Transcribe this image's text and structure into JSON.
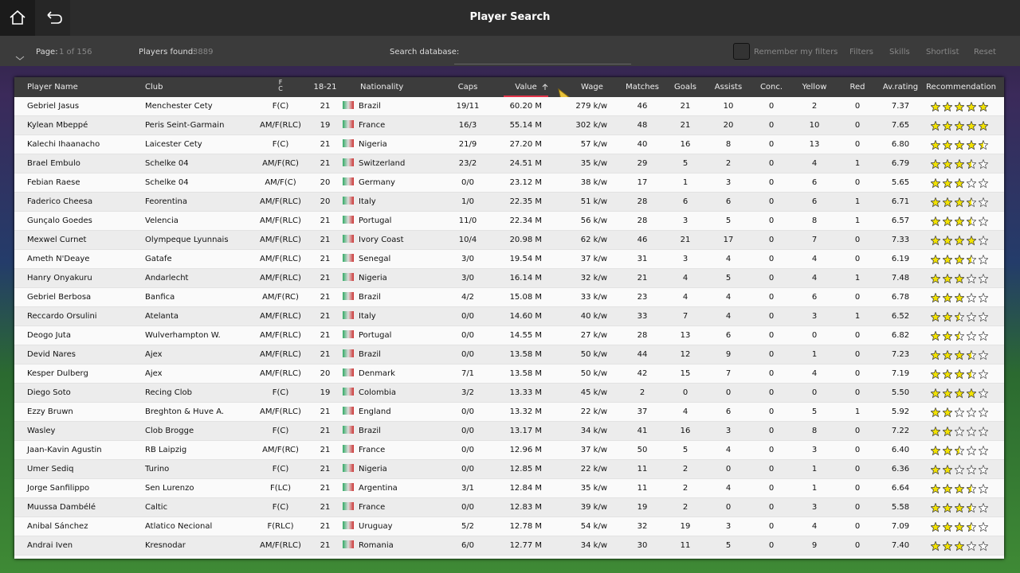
{
  "header": {
    "title": "Player Search",
    "page_label": "Page:",
    "page_value": "1 of 156",
    "found_label": "Players found:",
    "found_value": "3889",
    "search_label": "Search database:",
    "remember": "Remember my filters",
    "buttons": [
      "Filters",
      "Skills",
      "Shortlist",
      "Reset"
    ]
  },
  "table": {
    "columns": [
      "Player Name",
      "Club",
      "F\nC",
      "18-21",
      "Nationality",
      "Caps",
      "Value",
      "Wage",
      "Matches",
      "Goals",
      "Assists",
      "Conc.",
      "Yellow",
      "Red",
      "Av.rating",
      "Recommendation"
    ],
    "rows": [
      [
        "Gebriel Jasus",
        "Menchester Cety",
        "F(C)",
        "21",
        "Brazil",
        "19/11",
        "60.20 M",
        "279 k/w",
        "46",
        "21",
        "10",
        "0",
        "2",
        "0",
        "7.37"
      ],
      [
        "Kylean Mbeppé",
        "Peris Seint-Garmain",
        "AM/F(RLC)",
        "19",
        "France",
        "16/3",
        "55.14 M",
        "302 k/w",
        "48",
        "21",
        "20",
        "0",
        "10",
        "0",
        "7.65"
      ],
      [
        "Kalechi Ihaanacho",
        "Laicester Cety",
        "F(C)",
        "21",
        "Nigeria",
        "21/9",
        "27.20 M",
        "57 k/w",
        "40",
        "16",
        "8",
        "0",
        "13",
        "0",
        "6.80"
      ],
      [
        "Brael Embulo",
        "Schelke 04",
        "AM/F(RC)",
        "21",
        "Switzerland",
        "23/2",
        "24.51 M",
        "35 k/w",
        "29",
        "5",
        "2",
        "0",
        "4",
        "1",
        "6.79"
      ],
      [
        "Febian Raese",
        "Schelke 04",
        "AM/F(C)",
        "20",
        "Germany",
        "0/0",
        "23.12 M",
        "38 k/w",
        "17",
        "1",
        "3",
        "0",
        "6",
        "0",
        "5.65"
      ],
      [
        "Faderico Cheesa",
        "Feorentina",
        "AM/F(RLC)",
        "20",
        "Italy",
        "1/0",
        "22.35 M",
        "51 k/w",
        "28",
        "6",
        "6",
        "0",
        "6",
        "1",
        "6.71"
      ],
      [
        "Gunçalo Goedes",
        "Velencia",
        "AM/F(RLC)",
        "21",
        "Portugal",
        "11/0",
        "22.34 M",
        "56 k/w",
        "28",
        "3",
        "5",
        "0",
        "8",
        "1",
        "6.57"
      ],
      [
        "Mexwel Curnet",
        "Olympeque Lyunnais",
        "AM/F(RLC)",
        "21",
        "Ivory Coast",
        "10/4",
        "20.98 M",
        "62 k/w",
        "46",
        "21",
        "17",
        "0",
        "7",
        "0",
        "7.33"
      ],
      [
        "Ameth N'Deaye",
        "Gatafe",
        "AM/F(RLC)",
        "21",
        "Senegal",
        "3/0",
        "19.54 M",
        "37 k/w",
        "31",
        "3",
        "4",
        "0",
        "4",
        "0",
        "6.19"
      ],
      [
        "Hanry Onyakuru",
        "Andarlecht",
        "AM/F(RLC)",
        "21",
        "Nigeria",
        "3/0",
        "16.14 M",
        "32 k/w",
        "21",
        "4",
        "5",
        "0",
        "4",
        "1",
        "7.48"
      ],
      [
        "Gebriel Berbosa",
        "Banfica",
        "AM/F(RC)",
        "21",
        "Brazil",
        "4/2",
        "15.08 M",
        "33 k/w",
        "23",
        "4",
        "4",
        "0",
        "6",
        "0",
        "6.78"
      ],
      [
        "Reccardo Orsulini",
        "Atelanta",
        "AM/F(RLC)",
        "21",
        "Italy",
        "0/0",
        "14.60 M",
        "40 k/w",
        "33",
        "7",
        "4",
        "0",
        "3",
        "1",
        "6.52"
      ],
      [
        "Deogo Juta",
        "Wulverhampton W.",
        "AM/F(RLC)",
        "21",
        "Portugal",
        "0/0",
        "14.55 M",
        "27 k/w",
        "28",
        "13",
        "6",
        "0",
        "0",
        "0",
        "6.82"
      ],
      [
        "Devid Nares",
        "Ajex",
        "AM/F(RLC)",
        "21",
        "Brazil",
        "0/0",
        "13.58 M",
        "50 k/w",
        "44",
        "12",
        "9",
        "0",
        "1",
        "0",
        "7.23"
      ],
      [
        "Kesper Dulberg",
        "Ajex",
        "AM/F(RLC)",
        "20",
        "Denmark",
        "7/1",
        "13.58 M",
        "50 k/w",
        "42",
        "15",
        "7",
        "0",
        "4",
        "0",
        "7.19"
      ],
      [
        "Diego Soto",
        "Recing Clob",
        "F(C)",
        "19",
        "Colombia",
        "3/2",
        "13.33 M",
        "45 k/w",
        "2",
        "0",
        "0",
        "0",
        "0",
        "0",
        "5.50"
      ],
      [
        "Ezzy Bruwn",
        "Breghton & Huve A.",
        "AM/F(RLC)",
        "21",
        "England",
        "0/0",
        "13.32 M",
        "22 k/w",
        "37",
        "4",
        "6",
        "0",
        "5",
        "1",
        "5.92"
      ],
      [
        "Wasley",
        "Clob Brogge",
        "F(C)",
        "21",
        "Brazil",
        "0/0",
        "13.17 M",
        "34 k/w",
        "41",
        "16",
        "3",
        "0",
        "8",
        "0",
        "7.22"
      ],
      [
        "Jaan-Kavin Agustin",
        "RB Laipzig",
        "AM/F(RC)",
        "21",
        "France",
        "0/0",
        "12.96 M",
        "37 k/w",
        "50",
        "5",
        "4",
        "0",
        "3",
        "0",
        "6.40"
      ],
      [
        "Umer Sediq",
        "Turino",
        "F(C)",
        "21",
        "Nigeria",
        "0/0",
        "12.85 M",
        "22 k/w",
        "11",
        "2",
        "0",
        "0",
        "1",
        "0",
        "6.36"
      ],
      [
        "Jorge Sanfilippo",
        "Sen Lurenzo",
        "F(LC)",
        "21",
        "Argentina",
        "3/1",
        "12.84 M",
        "35 k/w",
        "11",
        "2",
        "4",
        "0",
        "1",
        "0",
        "6.64"
      ],
      [
        "Muussa Dambélé",
        "Caltic",
        "F(C)",
        "21",
        "France",
        "0/0",
        "12.83 M",
        "39 k/w",
        "19",
        "2",
        "0",
        "0",
        "3",
        "0",
        "5.58"
      ],
      [
        "Anibal Sánchez",
        "Atlatico Necional",
        "F(RLC)",
        "21",
        "Uruguay",
        "5/2",
        "12.78 M",
        "54 k/w",
        "32",
        "19",
        "3",
        "0",
        "4",
        "0",
        "7.09"
      ],
      [
        "Andrai Iven",
        "Kresnodar",
        "AM/F(RLC)",
        "21",
        "Romania",
        "6/0",
        "12.77 M",
        "34 k/w",
        "30",
        "11",
        "5",
        "0",
        "9",
        "0",
        "7.40"
      ]
    ],
    "recommendation": [
      5,
      5,
      4.5,
      3.5,
      3,
      3.5,
      3.5,
      4,
      3.5,
      3,
      3,
      2.5,
      2.5,
      3.5,
      3.5,
      4,
      2,
      2,
      2.5,
      2,
      3.5,
      3.5,
      3.5,
      3
    ]
  }
}
